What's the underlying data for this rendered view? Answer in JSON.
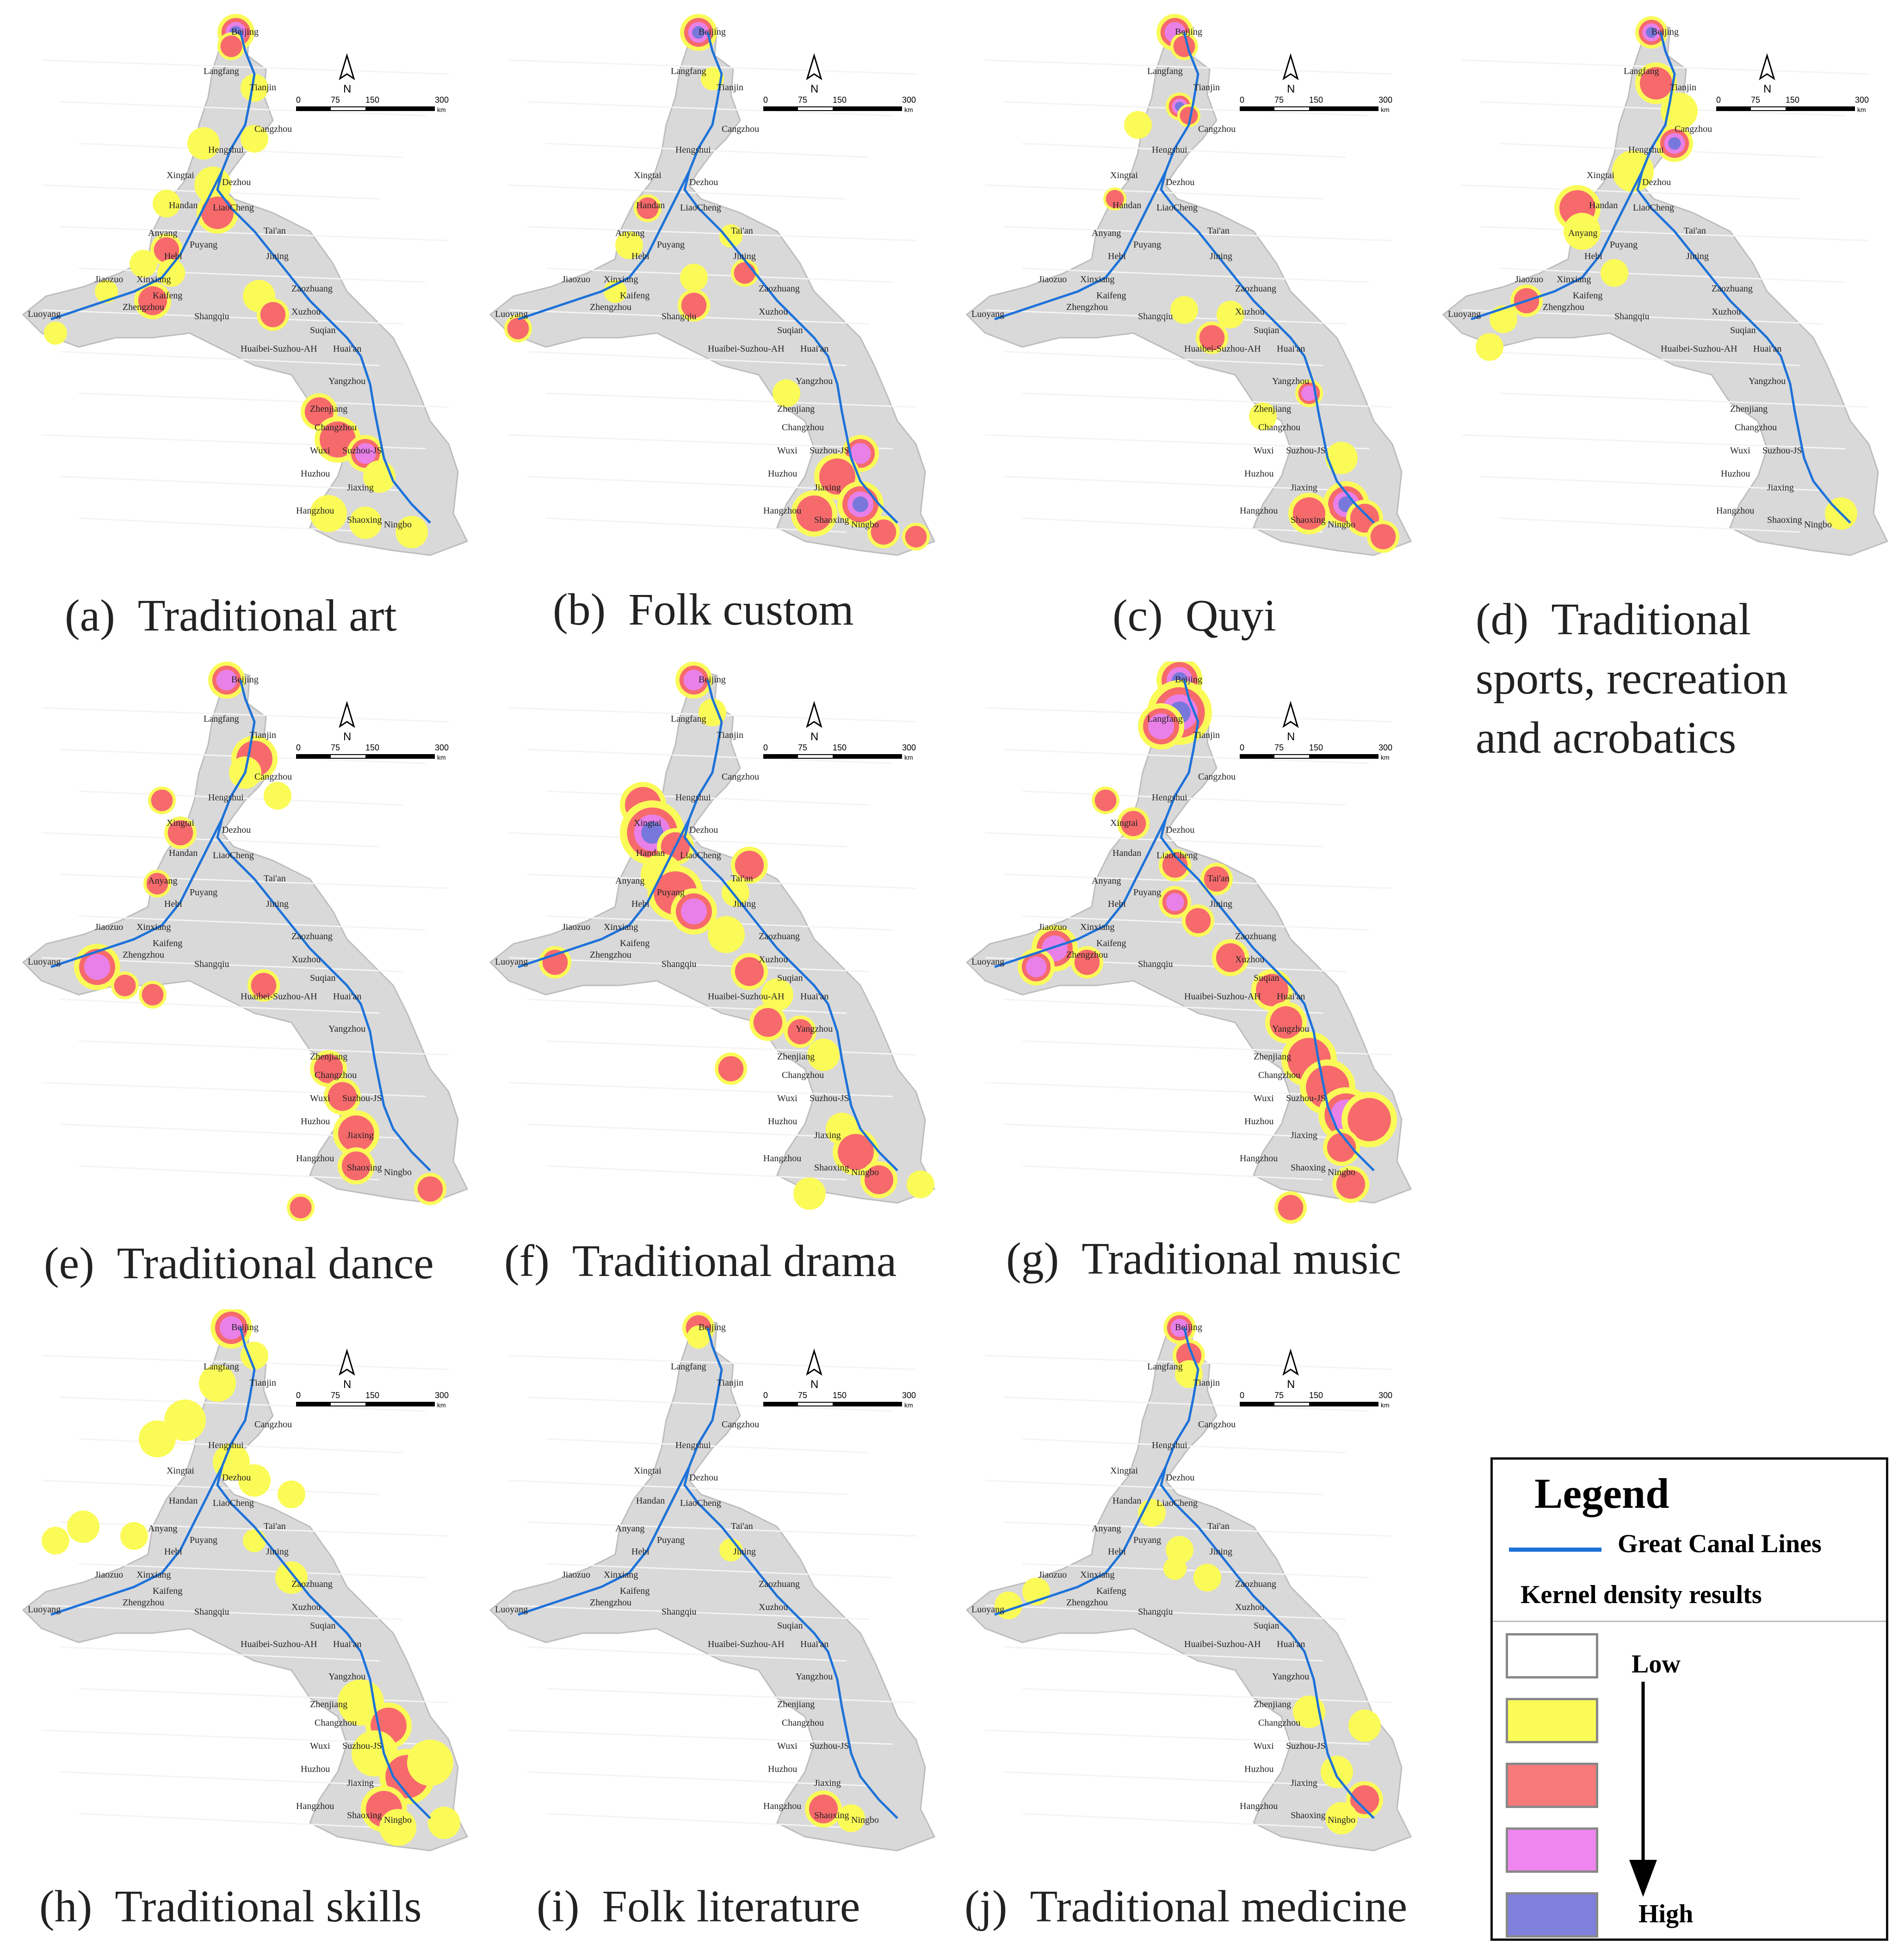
{
  "panels": [
    {
      "id": "a",
      "label": "(a)",
      "title": "Traditional art"
    },
    {
      "id": "b",
      "label": "(b)",
      "title": "Folk custom"
    },
    {
      "id": "c",
      "label": "(c)",
      "title": "Quyi"
    },
    {
      "id": "d",
      "label": "(d)",
      "title": "Traditional sports, recreation and acrobatics"
    },
    {
      "id": "e",
      "label": "(e)",
      "title": "Traditional dance"
    },
    {
      "id": "f",
      "label": "(f)",
      "title": "Traditional drama"
    },
    {
      "id": "g",
      "label": "(g)",
      "title": "Traditional music"
    },
    {
      "id": "h",
      "label": "(h)",
      "title": "Traditional skills"
    },
    {
      "id": "i",
      "label": "(i)",
      "title": "Folk literature"
    },
    {
      "id": "j",
      "label": "(j)",
      "title": "Traditional medicine"
    }
  ],
  "map": {
    "north_label": "N",
    "scale_labels": [
      "0",
      "75",
      "150",
      "300"
    ],
    "scale_unit": "km",
    "cities": [
      "Beijing",
      "Langfang",
      "Tianjin",
      "Cangzhou",
      "Hengshui",
      "Xingtai",
      "Dezhou",
      "Handan",
      "LiaoCheng",
      "Tai'an",
      "Anyang",
      "Puyang",
      "Hebi",
      "Jining",
      "Jiaozuo",
      "Xinxiang",
      "Kaifeng",
      "Zaozhuang",
      "Luoyang",
      "Zhengzhou",
      "Shangqiu",
      "Xuzhou",
      "Suqian",
      "Huai'an",
      "Huaibei-Suzhou-AH",
      "Yangzhou",
      "Zhenjiang",
      "Changzhou",
      "Wuxi",
      "Suzhou-JS",
      "Huzhou",
      "Jiaxing",
      "Hangzhou",
      "Shaoxing",
      "Ningbo"
    ]
  },
  "legend": {
    "title": "Legend",
    "line_label": "Great Canal Lines",
    "density_label": "Kernel density results",
    "low_label": "Low",
    "high_label": "High",
    "swatch_colors": [
      "#ffffff",
      "#fbfb58",
      "#f7797a",
      "#ef86ef",
      "#7f7fdc"
    ]
  },
  "colors": {
    "region_fill": "#d9d9d9",
    "canal": "#1e72d8",
    "yellow": "#fbfb58",
    "red": "#f76a6c",
    "pink": "#e880e8",
    "blue": "#7878dc"
  }
}
